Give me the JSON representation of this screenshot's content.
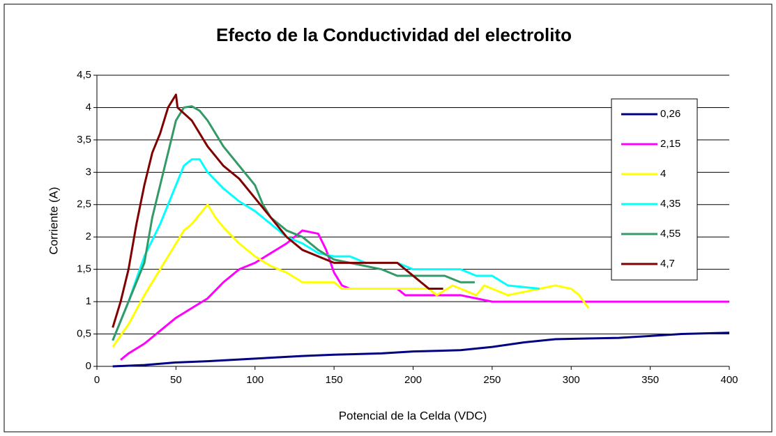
{
  "chart_data": {
    "type": "line",
    "title": "Efecto de la Conductividad del electrolito",
    "x_label": "Potencial de la Celda (VDC)",
    "y_label": "Corriente (A)",
    "xlim": [
      0,
      400
    ],
    "xticks": [
      0,
      50,
      100,
      150,
      200,
      250,
      300,
      350,
      400
    ],
    "ylim": [
      0,
      4.5
    ],
    "yticks": [
      0,
      {
        "value": 0.5,
        "label": "0,5"
      },
      1,
      {
        "value": 1.5,
        "label": "1,5"
      },
      2,
      {
        "value": 2.5,
        "label": "2,5"
      },
      3,
      {
        "value": 3.5,
        "label": "3,5"
      },
      4,
      {
        "value": 4.5,
        "label": "4,5"
      }
    ],
    "grid": true,
    "legend": "upper right",
    "series": [
      {
        "name": "0,26",
        "color": "#000080",
        "x": [
          10,
          30,
          50,
          70,
          100,
          130,
          150,
          180,
          200,
          230,
          250,
          270,
          290,
          310,
          330,
          350,
          370,
          400
        ],
        "values": [
          0,
          0.02,
          0.06,
          0.08,
          0.12,
          0.16,
          0.18,
          0.2,
          0.23,
          0.25,
          0.3,
          0.37,
          0.42,
          0.43,
          0.44,
          0.47,
          0.5,
          0.52
        ]
      },
      {
        "name": "2,15",
        "color": "#ff00ff",
        "x": [
          15,
          20,
          30,
          40,
          50,
          60,
          70,
          80,
          90,
          100,
          110,
          120,
          130,
          140,
          145,
          150,
          155,
          160,
          190,
          195,
          230,
          250,
          400
        ],
        "values": [
          0.1,
          0.2,
          0.35,
          0.55,
          0.75,
          0.9,
          1.05,
          1.3,
          1.5,
          1.6,
          1.75,
          1.9,
          2.1,
          2.05,
          1.8,
          1.45,
          1.25,
          1.2,
          1.2,
          1.1,
          1.1,
          1.0,
          1.0
        ]
      },
      {
        "name": "4",
        "color": "#ffff00",
        "x": [
          10,
          20,
          30,
          40,
          50,
          55,
          60,
          70,
          75,
          80,
          90,
          100,
          110,
          120,
          130,
          150,
          155,
          210,
          215,
          225,
          240,
          245,
          260,
          280,
          290,
          300,
          305,
          311
        ],
        "values": [
          0.3,
          0.65,
          1.1,
          1.5,
          1.9,
          2.1,
          2.2,
          2.5,
          2.3,
          2.15,
          1.9,
          1.7,
          1.55,
          1.45,
          1.3,
          1.3,
          1.2,
          1.2,
          1.1,
          1.25,
          1.1,
          1.25,
          1.1,
          1.2,
          1.25,
          1.2,
          1.1,
          0.9
        ]
      },
      {
        "name": "4,35",
        "color": "#00ffff",
        "x": [
          10,
          20,
          30,
          40,
          45,
          50,
          55,
          60,
          65,
          70,
          80,
          90,
          100,
          110,
          120,
          130,
          140,
          150,
          160,
          170,
          190,
          200,
          230,
          240,
          250,
          260,
          280
        ],
        "values": [
          0.4,
          1.0,
          1.7,
          2.2,
          2.5,
          2.8,
          3.1,
          3.2,
          3.2,
          3.0,
          2.75,
          2.55,
          2.4,
          2.2,
          2.0,
          1.9,
          1.75,
          1.7,
          1.7,
          1.6,
          1.6,
          1.5,
          1.5,
          1.4,
          1.4,
          1.25,
          1.2
        ]
      },
      {
        "name": "4,55",
        "color": "#339966",
        "x": [
          10,
          20,
          30,
          35,
          40,
          45,
          50,
          55,
          60,
          65,
          70,
          80,
          90,
          100,
          105,
          110,
          120,
          130,
          140,
          150,
          160,
          170,
          180,
          190,
          220,
          230,
          239
        ],
        "values": [
          0.4,
          1.0,
          1.6,
          2.3,
          2.8,
          3.3,
          3.8,
          4.0,
          4.02,
          3.95,
          3.8,
          3.4,
          3.1,
          2.8,
          2.5,
          2.3,
          2.1,
          2.0,
          1.8,
          1.65,
          1.6,
          1.55,
          1.5,
          1.4,
          1.4,
          1.3,
          1.3
        ]
      },
      {
        "name": "4,7",
        "color": "#800000",
        "x": [
          10,
          15,
          20,
          25,
          30,
          35,
          40,
          45,
          50,
          51,
          60,
          70,
          80,
          90,
          100,
          110,
          120,
          130,
          140,
          150,
          190,
          200,
          210,
          219
        ],
        "values": [
          0.6,
          1.0,
          1.5,
          2.2,
          2.8,
          3.3,
          3.6,
          4.0,
          4.2,
          4.0,
          3.8,
          3.4,
          3.1,
          2.9,
          2.6,
          2.3,
          2.0,
          1.8,
          1.7,
          1.6,
          1.6,
          1.4,
          1.2,
          1.2
        ]
      }
    ]
  }
}
